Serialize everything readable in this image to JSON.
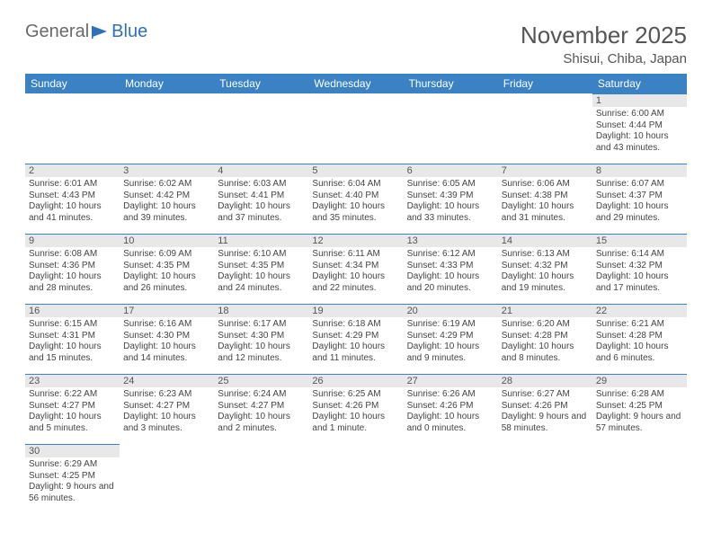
{
  "logo": {
    "text_a": "General",
    "text_b": "Blue"
  },
  "header": {
    "month_title": "November 2025",
    "location": "Shisui, Chiba, Japan"
  },
  "colors": {
    "header_bg": "#3b82c4",
    "header_text": "#ffffff",
    "daynum_bg": "#e8e8e8",
    "accent": "#3b82c4"
  },
  "day_headers": [
    "Sunday",
    "Monday",
    "Tuesday",
    "Wednesday",
    "Thursday",
    "Friday",
    "Saturday"
  ],
  "weeks": [
    [
      {
        "empty": true
      },
      {
        "empty": true
      },
      {
        "empty": true
      },
      {
        "empty": true
      },
      {
        "empty": true
      },
      {
        "empty": true
      },
      {
        "num": "1",
        "sunrise": "Sunrise: 6:00 AM",
        "sunset": "Sunset: 4:44 PM",
        "daylight": "Daylight: 10 hours and 43 minutes."
      }
    ],
    [
      {
        "num": "2",
        "sunrise": "Sunrise: 6:01 AM",
        "sunset": "Sunset: 4:43 PM",
        "daylight": "Daylight: 10 hours and 41 minutes."
      },
      {
        "num": "3",
        "sunrise": "Sunrise: 6:02 AM",
        "sunset": "Sunset: 4:42 PM",
        "daylight": "Daylight: 10 hours and 39 minutes."
      },
      {
        "num": "4",
        "sunrise": "Sunrise: 6:03 AM",
        "sunset": "Sunset: 4:41 PM",
        "daylight": "Daylight: 10 hours and 37 minutes."
      },
      {
        "num": "5",
        "sunrise": "Sunrise: 6:04 AM",
        "sunset": "Sunset: 4:40 PM",
        "daylight": "Daylight: 10 hours and 35 minutes."
      },
      {
        "num": "6",
        "sunrise": "Sunrise: 6:05 AM",
        "sunset": "Sunset: 4:39 PM",
        "daylight": "Daylight: 10 hours and 33 minutes."
      },
      {
        "num": "7",
        "sunrise": "Sunrise: 6:06 AM",
        "sunset": "Sunset: 4:38 PM",
        "daylight": "Daylight: 10 hours and 31 minutes."
      },
      {
        "num": "8",
        "sunrise": "Sunrise: 6:07 AM",
        "sunset": "Sunset: 4:37 PM",
        "daylight": "Daylight: 10 hours and 29 minutes."
      }
    ],
    [
      {
        "num": "9",
        "sunrise": "Sunrise: 6:08 AM",
        "sunset": "Sunset: 4:36 PM",
        "daylight": "Daylight: 10 hours and 28 minutes."
      },
      {
        "num": "10",
        "sunrise": "Sunrise: 6:09 AM",
        "sunset": "Sunset: 4:35 PM",
        "daylight": "Daylight: 10 hours and 26 minutes."
      },
      {
        "num": "11",
        "sunrise": "Sunrise: 6:10 AM",
        "sunset": "Sunset: 4:35 PM",
        "daylight": "Daylight: 10 hours and 24 minutes."
      },
      {
        "num": "12",
        "sunrise": "Sunrise: 6:11 AM",
        "sunset": "Sunset: 4:34 PM",
        "daylight": "Daylight: 10 hours and 22 minutes."
      },
      {
        "num": "13",
        "sunrise": "Sunrise: 6:12 AM",
        "sunset": "Sunset: 4:33 PM",
        "daylight": "Daylight: 10 hours and 20 minutes."
      },
      {
        "num": "14",
        "sunrise": "Sunrise: 6:13 AM",
        "sunset": "Sunset: 4:32 PM",
        "daylight": "Daylight: 10 hours and 19 minutes."
      },
      {
        "num": "15",
        "sunrise": "Sunrise: 6:14 AM",
        "sunset": "Sunset: 4:32 PM",
        "daylight": "Daylight: 10 hours and 17 minutes."
      }
    ],
    [
      {
        "num": "16",
        "sunrise": "Sunrise: 6:15 AM",
        "sunset": "Sunset: 4:31 PM",
        "daylight": "Daylight: 10 hours and 15 minutes."
      },
      {
        "num": "17",
        "sunrise": "Sunrise: 6:16 AM",
        "sunset": "Sunset: 4:30 PM",
        "daylight": "Daylight: 10 hours and 14 minutes."
      },
      {
        "num": "18",
        "sunrise": "Sunrise: 6:17 AM",
        "sunset": "Sunset: 4:30 PM",
        "daylight": "Daylight: 10 hours and 12 minutes."
      },
      {
        "num": "19",
        "sunrise": "Sunrise: 6:18 AM",
        "sunset": "Sunset: 4:29 PM",
        "daylight": "Daylight: 10 hours and 11 minutes."
      },
      {
        "num": "20",
        "sunrise": "Sunrise: 6:19 AM",
        "sunset": "Sunset: 4:29 PM",
        "daylight": "Daylight: 10 hours and 9 minutes."
      },
      {
        "num": "21",
        "sunrise": "Sunrise: 6:20 AM",
        "sunset": "Sunset: 4:28 PM",
        "daylight": "Daylight: 10 hours and 8 minutes."
      },
      {
        "num": "22",
        "sunrise": "Sunrise: 6:21 AM",
        "sunset": "Sunset: 4:28 PM",
        "daylight": "Daylight: 10 hours and 6 minutes."
      }
    ],
    [
      {
        "num": "23",
        "sunrise": "Sunrise: 6:22 AM",
        "sunset": "Sunset: 4:27 PM",
        "daylight": "Daylight: 10 hours and 5 minutes."
      },
      {
        "num": "24",
        "sunrise": "Sunrise: 6:23 AM",
        "sunset": "Sunset: 4:27 PM",
        "daylight": "Daylight: 10 hours and 3 minutes."
      },
      {
        "num": "25",
        "sunrise": "Sunrise: 6:24 AM",
        "sunset": "Sunset: 4:27 PM",
        "daylight": "Daylight: 10 hours and 2 minutes."
      },
      {
        "num": "26",
        "sunrise": "Sunrise: 6:25 AM",
        "sunset": "Sunset: 4:26 PM",
        "daylight": "Daylight: 10 hours and 1 minute."
      },
      {
        "num": "27",
        "sunrise": "Sunrise: 6:26 AM",
        "sunset": "Sunset: 4:26 PM",
        "daylight": "Daylight: 10 hours and 0 minutes."
      },
      {
        "num": "28",
        "sunrise": "Sunrise: 6:27 AM",
        "sunset": "Sunset: 4:26 PM",
        "daylight": "Daylight: 9 hours and 58 minutes."
      },
      {
        "num": "29",
        "sunrise": "Sunrise: 6:28 AM",
        "sunset": "Sunset: 4:25 PM",
        "daylight": "Daylight: 9 hours and 57 minutes."
      }
    ],
    [
      {
        "num": "30",
        "sunrise": "Sunrise: 6:29 AM",
        "sunset": "Sunset: 4:25 PM",
        "daylight": "Daylight: 9 hours and 56 minutes."
      },
      {
        "empty": true
      },
      {
        "empty": true
      },
      {
        "empty": true
      },
      {
        "empty": true
      },
      {
        "empty": true
      },
      {
        "empty": true
      }
    ]
  ]
}
